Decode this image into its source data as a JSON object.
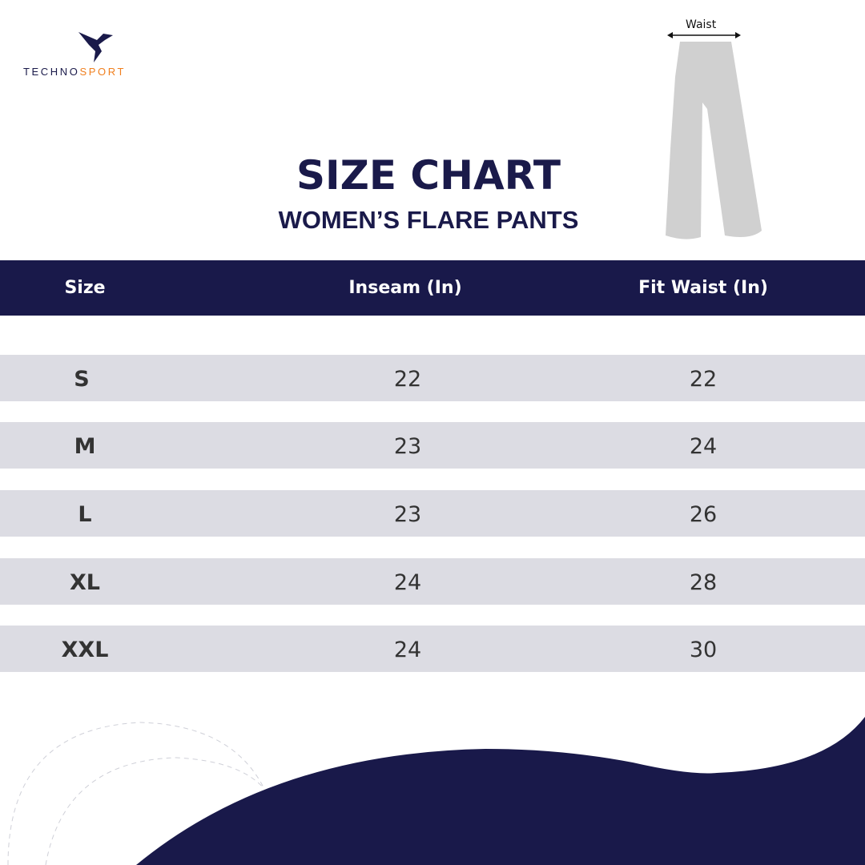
{
  "brand": {
    "part1": "TECHNO",
    "part2": "SPORT",
    "color1": "#1a1a4a",
    "color2": "#f07f1e"
  },
  "title": "SIZE CHART",
  "subtitle": "WOMEN’S FLARE PANTS",
  "diagram": {
    "label": "Waist"
  },
  "table": {
    "headers": [
      "Size",
      "Inseam (In)",
      "Fit Waist (In)"
    ],
    "rows": [
      {
        "size": "S",
        "inseam": "22",
        "waist": "22"
      },
      {
        "size": "M",
        "inseam": "23",
        "waist": "24"
      },
      {
        "size": "L",
        "inseam": "23",
        "waist": "26"
      },
      {
        "size": "XL",
        "inseam": "24",
        "waist": "28"
      },
      {
        "size": "XXL",
        "inseam": "24",
        "waist": "30"
      }
    ]
  },
  "colors": {
    "navy": "#19194a",
    "row": "#dcdce3",
    "orange": "#f07f1e",
    "pants": "#d0d0d0"
  }
}
